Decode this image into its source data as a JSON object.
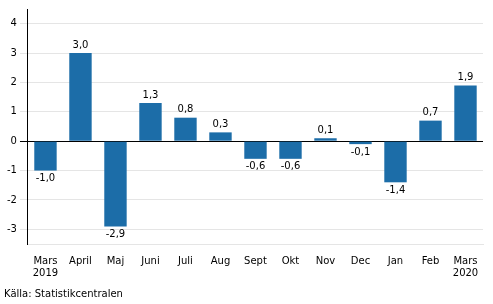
{
  "chart_data": {
    "type": "bar",
    "categories": [
      "Mars\n2019",
      "April",
      "Maj",
      "Juni",
      "Juli",
      "Aug",
      "Sept",
      "Okt",
      "Nov",
      "Dec",
      "Jan",
      "Feb",
      "Mars\n2020"
    ],
    "values": [
      -1.0,
      3.0,
      -2.9,
      1.3,
      0.8,
      0.3,
      -0.6,
      -0.6,
      0.1,
      -0.1,
      -1.4,
      0.7,
      1.9
    ],
    "value_labels": [
      "-1,0",
      "3,0",
      "-2,9",
      "1,3",
      "0,8",
      "0,3",
      "-0,6",
      "-0,6",
      "0,1",
      "-0,1",
      "-1,4",
      "0,7",
      "1,9"
    ],
    "color": "#1c6da8",
    "ylim": [
      -3.5,
      4.5
    ],
    "yticks": [
      -3,
      -2,
      -1,
      0,
      1,
      2,
      3,
      4
    ],
    "grid": true,
    "data_labels": true,
    "annotations": [
      "Källa: Statistikcentralen"
    ]
  }
}
